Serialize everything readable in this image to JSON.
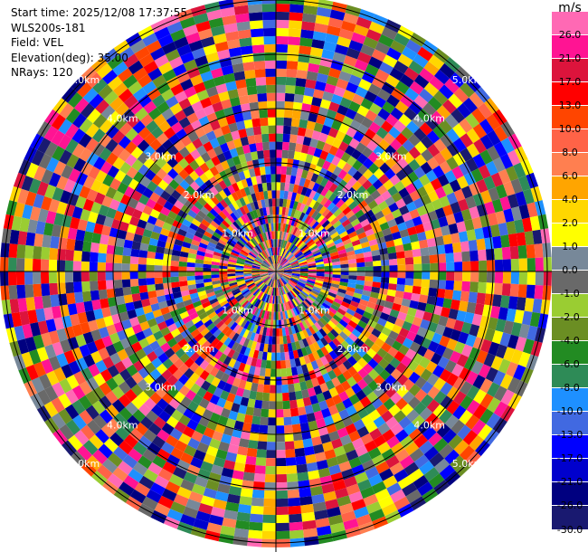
{
  "info": {
    "start_time": "Start time: 2025/12/08 17:37:55",
    "station": "WLS200s-181",
    "field": "Field: VEL",
    "elevation": "Elevation(deg): 35.00",
    "nrays": "NRays: 120"
  },
  "range_rings": [
    "1.0km",
    "2.0km",
    "3.0km",
    "4.0km",
    "5.0km"
  ],
  "colorbar": {
    "unit": "m/s",
    "ticks": [
      "26.0",
      "21.0",
      "17.0",
      "13.0",
      "10.0",
      "8.0",
      "6.0",
      "4.0",
      "2.0",
      "1.0",
      "0.0",
      "-1.0",
      "-2.0",
      "-4.0",
      "-6.0",
      "-8.0",
      "-10.0",
      "-13.0",
      "-17.0",
      "-21.0",
      "-26.0",
      "-30.0"
    ],
    "colors": [
      "#ff69b4",
      "#ff1493",
      "#dc143c",
      "#ff0000",
      "#ff4500",
      "#ff6347",
      "#ff7f50",
      "#ffa500",
      "#ffd700",
      "#ffff00",
      "#778899",
      "#696969",
      "#9acd32",
      "#6b8e23",
      "#228b22",
      "#2e8b57",
      "#1e90ff",
      "#4169e1",
      "#0000ff",
      "#0000cd",
      "#000080",
      "#191970"
    ]
  }
}
